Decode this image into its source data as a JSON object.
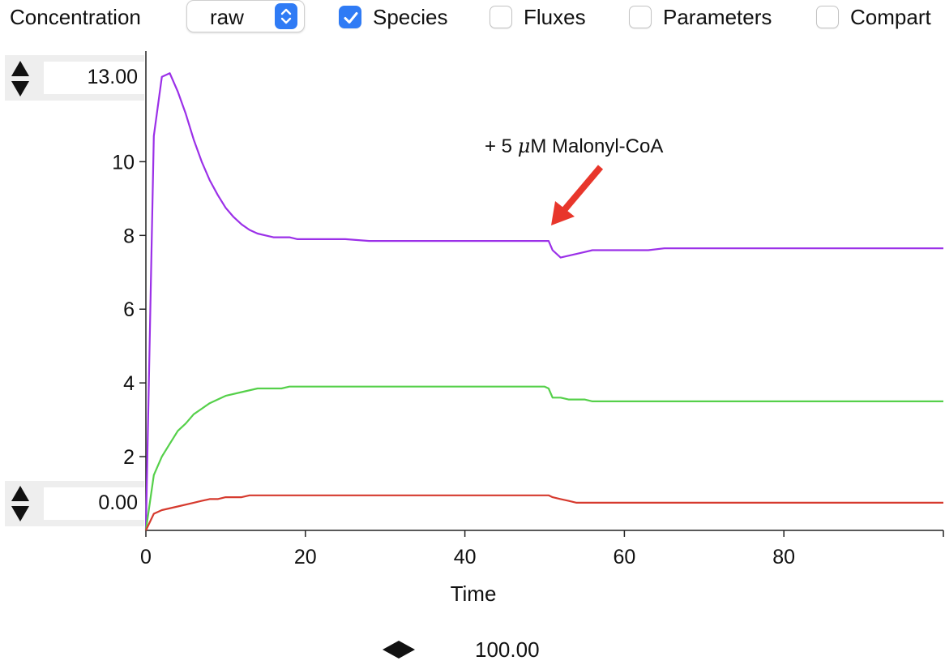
{
  "toolbar": {
    "mode_label": "Concentration",
    "mode_select_value": "raw",
    "checkboxes": [
      {
        "label": "Species",
        "checked": true
      },
      {
        "label": "Fluxes",
        "checked": false
      },
      {
        "label": "Parameters",
        "checked": false
      },
      {
        "label": "Compart",
        "checked": false
      }
    ]
  },
  "y_range": {
    "max_value": "13.00",
    "min_value": "0.00"
  },
  "x_range": {
    "max_value": "100.00"
  },
  "annotation": {
    "prefix": "+ 5 ",
    "mu": "μ",
    "suffix": "M Malonyl-CoA",
    "arrow_color": "#e8362b"
  },
  "colors": {
    "accent": "#2f7bf5",
    "purple": "#9b30e8",
    "green": "#55d04a",
    "red": "#d63a2e"
  },
  "chart_data": {
    "type": "line",
    "xlabel": "Time",
    "ylabel": "",
    "xlim": [
      0,
      100
    ],
    "ylim": [
      0,
      13
    ],
    "x_ticks": [
      0,
      20,
      40,
      60,
      80
    ],
    "y_ticks": [
      2,
      4,
      6,
      8,
      10
    ],
    "grid": false,
    "series": [
      {
        "color": "#9b30e8",
        "x": [
          0,
          1,
          2,
          3,
          4,
          5,
          6,
          7,
          8,
          9,
          10,
          11,
          12,
          13,
          14,
          15,
          16,
          17,
          18,
          19,
          20,
          25,
          28,
          30,
          35,
          40,
          45,
          48,
          50.5,
          51,
          52,
          53,
          55,
          56,
          57,
          58,
          60,
          63,
          65,
          66,
          70,
          80,
          90,
          100
        ],
        "y": [
          0,
          10.7,
          12.3,
          12.4,
          11.9,
          11.3,
          10.6,
          10.0,
          9.5,
          9.1,
          8.75,
          8.5,
          8.3,
          8.15,
          8.05,
          8.0,
          7.95,
          7.95,
          7.95,
          7.9,
          7.9,
          7.9,
          7.85,
          7.85,
          7.85,
          7.85,
          7.85,
          7.85,
          7.85,
          7.6,
          7.4,
          7.45,
          7.55,
          7.6,
          7.6,
          7.6,
          7.6,
          7.6,
          7.65,
          7.65,
          7.65,
          7.65,
          7.65,
          7.65
        ]
      },
      {
        "color": "#55d04a",
        "x": [
          0,
          1,
          2,
          3,
          4,
          5,
          6,
          7,
          8,
          9,
          10,
          12,
          14,
          16,
          17,
          18,
          20,
          30,
          40,
          50,
          50.5,
          51,
          52,
          53,
          55,
          56,
          60,
          70,
          80,
          90,
          100
        ],
        "y": [
          0,
          1.5,
          2.0,
          2.35,
          2.7,
          2.9,
          3.15,
          3.3,
          3.45,
          3.55,
          3.65,
          3.75,
          3.85,
          3.85,
          3.85,
          3.9,
          3.9,
          3.9,
          3.9,
          3.9,
          3.85,
          3.6,
          3.6,
          3.55,
          3.55,
          3.5,
          3.5,
          3.5,
          3.5,
          3.5,
          3.5
        ]
      },
      {
        "color": "#d63a2e",
        "x": [
          0,
          1,
          2,
          4,
          6,
          7,
          8,
          9,
          10,
          12,
          13,
          14,
          20,
          30,
          40,
          50,
          50.5,
          51,
          52,
          53,
          54,
          60,
          70,
          80,
          90,
          100
        ],
        "y": [
          0,
          0.45,
          0.55,
          0.65,
          0.75,
          0.8,
          0.85,
          0.85,
          0.9,
          0.9,
          0.95,
          0.95,
          0.95,
          0.95,
          0.95,
          0.95,
          0.95,
          0.9,
          0.85,
          0.8,
          0.75,
          0.75,
          0.75,
          0.75,
          0.75,
          0.75
        ]
      }
    ]
  }
}
